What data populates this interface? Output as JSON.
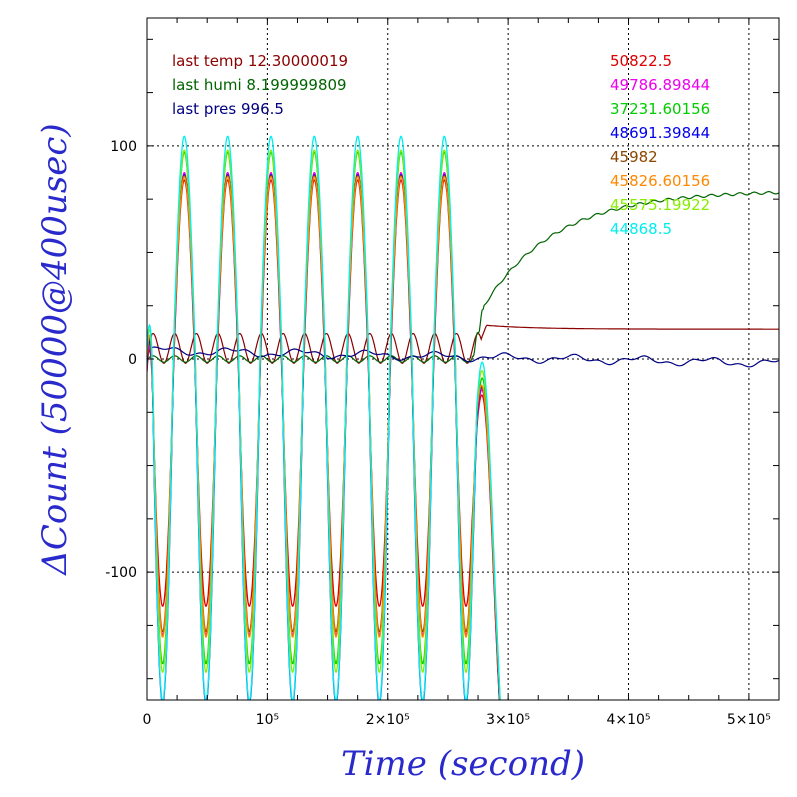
{
  "chart_data": {
    "type": "line",
    "xlabel": "Time (second)",
    "ylabel": "ΔCount (50000@400usec)",
    "xlim": [
      0,
      525000
    ],
    "ylim": [
      -160,
      160
    ],
    "grid": true,
    "x_ticks": [
      {
        "value": 0,
        "label": "0"
      },
      {
        "value": 100000,
        "label": "10⁵"
      },
      {
        "value": 200000,
        "label": "2×10⁵"
      },
      {
        "value": 300000,
        "label": "3×10⁵"
      },
      {
        "value": 400000,
        "label": "4×10⁵"
      },
      {
        "value": 500000,
        "label": "5×10⁵"
      }
    ],
    "y_ticks": [
      {
        "value": -100,
        "label": "-100"
      },
      {
        "value": 0,
        "label": "0"
      },
      {
        "value": 100,
        "label": "100"
      }
    ],
    "info_labels": [
      {
        "text": "last temp 12.30000019",
        "color": "#8b0000"
      },
      {
        "text": "last humi 8.199999809",
        "color": "#006400"
      },
      {
        "text": "last pres 996.5",
        "color": "#000080"
      }
    ],
    "series": [
      {
        "name": "50822.5",
        "color": "#dd0000",
        "amp_pos": 90,
        "amp_neg": 110
      },
      {
        "name": "49786.89844",
        "color": "#ee00ee",
        "amp_pos": 92,
        "amp_neg": 125
      },
      {
        "name": "37231.60156",
        "color": "#00cc00",
        "amp_pos": 100,
        "amp_neg": 140
      },
      {
        "name": "48691.39844",
        "color": "#0000ee",
        "amp_pos": 88,
        "amp_neg": 160
      },
      {
        "name": "45982",
        "color": "#8b4500",
        "amp_pos": 86,
        "amp_neg": 128
      },
      {
        "name": "45826.60156",
        "color": "#ff8800",
        "amp_pos": 84,
        "amp_neg": 132
      },
      {
        "name": "45575.19922",
        "color": "#88ee00",
        "amp_pos": 95,
        "amp_neg": 150
      },
      {
        "name": "44868.5",
        "color": "#00eeee",
        "amp_pos": 100,
        "amp_neg": 165
      }
    ],
    "env_series": [
      {
        "name": "temp",
        "color": "#8b0000",
        "final": 14
      },
      {
        "name": "humi",
        "color": "#006400",
        "final": 79
      },
      {
        "name": "pres",
        "color": "#000080",
        "final": -2
      }
    ],
    "oscillation": {
      "period": 36000,
      "first_peak": 31000,
      "cycles": 7,
      "drop_start": 270000,
      "drop_end": 300000
    }
  }
}
